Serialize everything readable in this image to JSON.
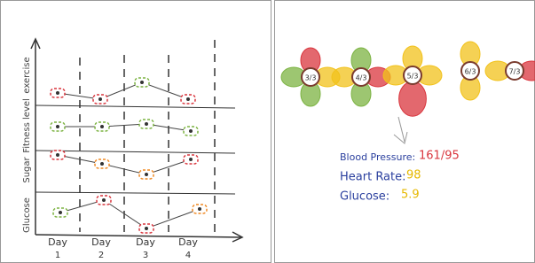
{
  "left_panel": {
    "rows": [
      "exercise",
      "Fitness level",
      "Sugar",
      "Glucose"
    ],
    "days": [
      {
        "label": "Day",
        "number": "1"
      },
      {
        "label": "Day",
        "number": "2"
      },
      {
        "label": "Day",
        "number": "3"
      },
      {
        "label": "Day",
        "number": "4"
      }
    ]
  },
  "right_panel": {
    "flowers": [
      "3/3",
      "4/3",
      "5/3",
      "6/3",
      "7/3"
    ],
    "readings": [
      {
        "label": "Blood Pressure:",
        "value": "161/95"
      },
      {
        "label": "Heart Rate:",
        "value": 98
      },
      {
        "label": "Glucose:",
        "value": 5.9
      }
    ]
  }
}
